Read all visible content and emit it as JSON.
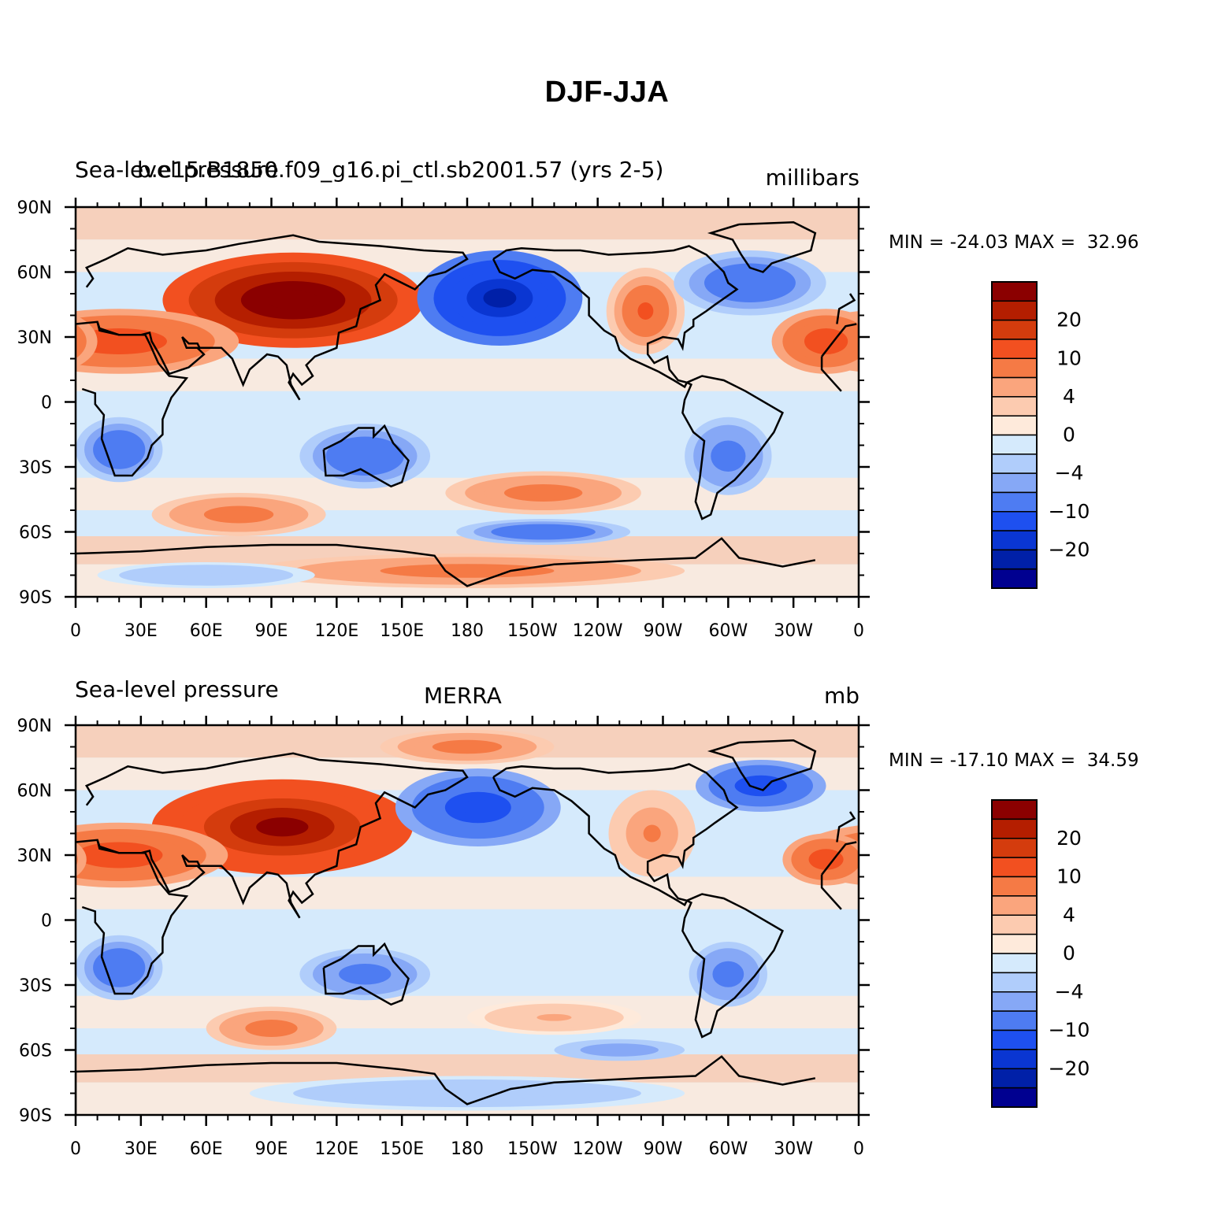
{
  "title": "DJF-JJA",
  "chart_data": [
    {
      "type": "heatmap",
      "left_label": "Sea-level pressure",
      "center_label": "b.e15.B1850.f09_g16.pi_ctl.sb2001.57 (yrs 2-5)",
      "units": "millibars",
      "min_label": "MIN =",
      "min_value": "-24.03",
      "max_label": "MAX =",
      "max_value": "32.96",
      "x_ticks": [
        "0",
        "30E",
        "60E",
        "90E",
        "120E",
        "150E",
        "180",
        "150W",
        "120W",
        "90W",
        "60W",
        "30W",
        "0"
      ],
      "y_ticks": [
        "90N",
        "60N",
        "30N",
        "0",
        "30S",
        "60S",
        "90S"
      ],
      "xlim": [
        0,
        360
      ],
      "ylim": [
        -90,
        90
      ],
      "colorbar_labels": [
        "20",
        "10",
        "4",
        "0",
        "-4",
        "-10",
        "-20"
      ],
      "colorbar_colors": [
        "#8b0000",
        "#b41e00",
        "#d43c0d",
        "#f25020",
        "#f57a45",
        "#faa57d",
        "#fccbb0",
        "#feeadb",
        "#d5eafc",
        "#b0cdfb",
        "#86a8f6",
        "#4e7cf2",
        "#1e50f0",
        "#0a36d2",
        "#0020a8",
        "#000090"
      ],
      "features": [
        {
          "lon": 100,
          "lat": 47,
          "rx": 60,
          "ry": 22,
          "value": 30
        },
        {
          "lon": 20,
          "lat": 28,
          "rx": 55,
          "ry": 15,
          "value": 12
        },
        {
          "lon": 345,
          "lat": 28,
          "rx": 25,
          "ry": 15,
          "value": 12
        },
        {
          "lon": 262,
          "lat": 42,
          "rx": 18,
          "ry": 20,
          "value": 10
        },
        {
          "lon": 195,
          "lat": 48,
          "rx": 38,
          "ry": 22,
          "value": -22
        },
        {
          "lon": 310,
          "lat": 55,
          "rx": 35,
          "ry": 15,
          "value": -10
        },
        {
          "lon": 20,
          "lat": -22,
          "rx": 20,
          "ry": 15,
          "value": -10
        },
        {
          "lon": 133,
          "lat": -25,
          "rx": 30,
          "ry": 15,
          "value": -10
        },
        {
          "lon": 300,
          "lat": -25,
          "rx": 20,
          "ry": 18,
          "value": -8
        },
        {
          "lon": 215,
          "lat": -42,
          "rx": 45,
          "ry": 10,
          "value": 8
        },
        {
          "lon": 75,
          "lat": -52,
          "rx": 40,
          "ry": 10,
          "value": 8
        },
        {
          "lon": 215,
          "lat": -60,
          "rx": 40,
          "ry": 6,
          "value": -10
        },
        {
          "lon": 180,
          "lat": -78,
          "rx": 100,
          "ry": 8,
          "value": 8
        },
        {
          "lon": 60,
          "lat": -80,
          "rx": 50,
          "ry": 6,
          "value": -4
        }
      ]
    },
    {
      "type": "heatmap",
      "left_label": "Sea-level pressure",
      "center_label": "MERRA",
      "units": "mb",
      "min_label": "MIN =",
      "min_value": "-17.10",
      "max_label": "MAX =",
      "max_value": "34.59",
      "x_ticks": [
        "0",
        "30E",
        "60E",
        "90E",
        "120E",
        "150E",
        "180",
        "150W",
        "120W",
        "90W",
        "60W",
        "30W",
        "0"
      ],
      "y_ticks": [
        "90N",
        "60N",
        "30N",
        "0",
        "30S",
        "60S",
        "90S"
      ],
      "xlim": [
        0,
        360
      ],
      "ylim": [
        -90,
        90
      ],
      "colorbar_labels": [
        "20",
        "10",
        "4",
        "0",
        "-4",
        "-10",
        "-20"
      ],
      "colorbar_colors": [
        "#8b0000",
        "#b41e00",
        "#d43c0d",
        "#f25020",
        "#f57a45",
        "#faa57d",
        "#fccbb0",
        "#feeadb",
        "#d5eafc",
        "#b0cdfb",
        "#86a8f6",
        "#4e7cf2",
        "#1e50f0",
        "#0a36d2",
        "#0020a8",
        "#000090"
      ],
      "features": [
        {
          "lon": 95,
          "lat": 43,
          "rx": 60,
          "ry": 22,
          "value": 28
        },
        {
          "lon": 20,
          "lat": 30,
          "rx": 50,
          "ry": 15,
          "value": 12
        },
        {
          "lon": 345,
          "lat": 28,
          "rx": 20,
          "ry": 12,
          "value": 12
        },
        {
          "lon": 180,
          "lat": 80,
          "rx": 40,
          "ry": 8,
          "value": 8
        },
        {
          "lon": 265,
          "lat": 40,
          "rx": 20,
          "ry": 20,
          "value": 6
        },
        {
          "lon": 185,
          "lat": 52,
          "rx": 38,
          "ry": 18,
          "value": -14
        },
        {
          "lon": 315,
          "lat": 62,
          "rx": 30,
          "ry": 12,
          "value": -12
        },
        {
          "lon": 20,
          "lat": -22,
          "rx": 20,
          "ry": 15,
          "value": -10
        },
        {
          "lon": 133,
          "lat": -25,
          "rx": 30,
          "ry": 12,
          "value": -8
        },
        {
          "lon": 300,
          "lat": -25,
          "rx": 18,
          "ry": 15,
          "value": -8
        },
        {
          "lon": 90,
          "lat": -50,
          "rx": 30,
          "ry": 10,
          "value": 8
        },
        {
          "lon": 220,
          "lat": -45,
          "rx": 40,
          "ry": 8,
          "value": 4
        },
        {
          "lon": 250,
          "lat": -60,
          "rx": 30,
          "ry": 5,
          "value": -6
        },
        {
          "lon": 180,
          "lat": -80,
          "rx": 100,
          "ry": 8,
          "value": -4
        }
      ]
    }
  ]
}
